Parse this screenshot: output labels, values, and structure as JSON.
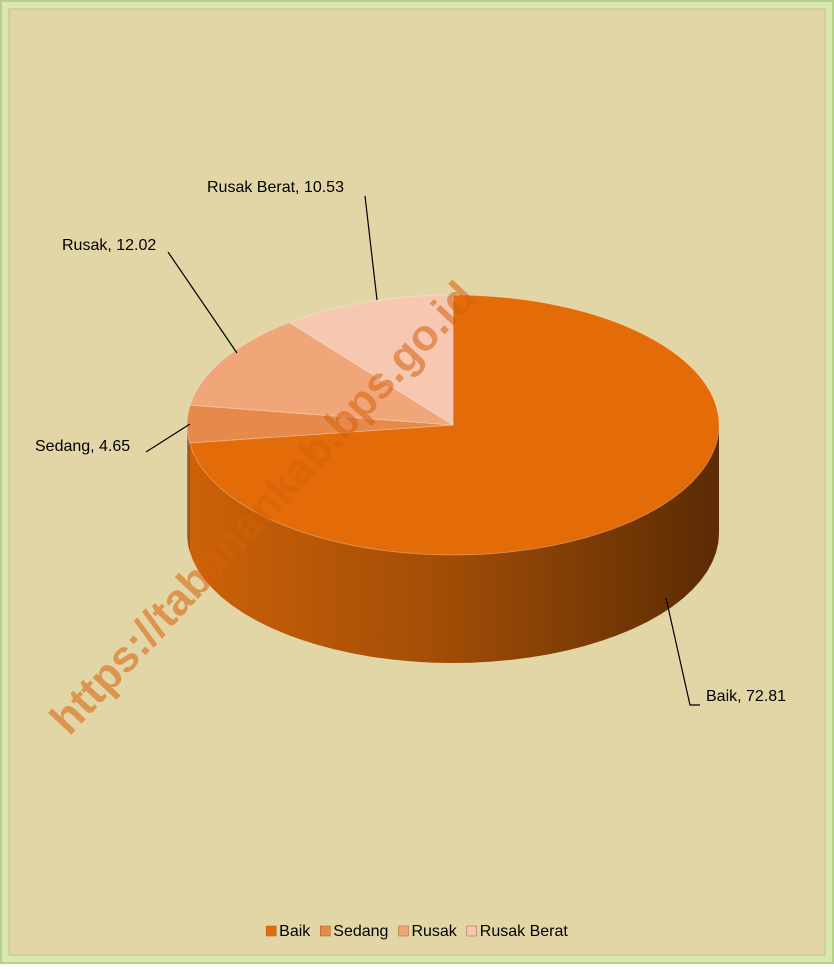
{
  "chart_data": {
    "type": "pie",
    "categories": [
      "Baik",
      "Sedang",
      "Rusak",
      "Rusak Berat"
    ],
    "values": [
      72.81,
      4.65,
      12.02,
      10.53
    ],
    "value_labels": [
      "Baik, 72.81",
      "Sedang, 4.65",
      "Rusak, 12.02",
      "Rusak Berat, 10.53"
    ],
    "colors": [
      "#e36c09",
      "#e68a4c",
      "#f1a67a",
      "#f6c8b2"
    ],
    "legend": "bottom",
    "watermark": "https://tabanankab.bps.go.id"
  }
}
